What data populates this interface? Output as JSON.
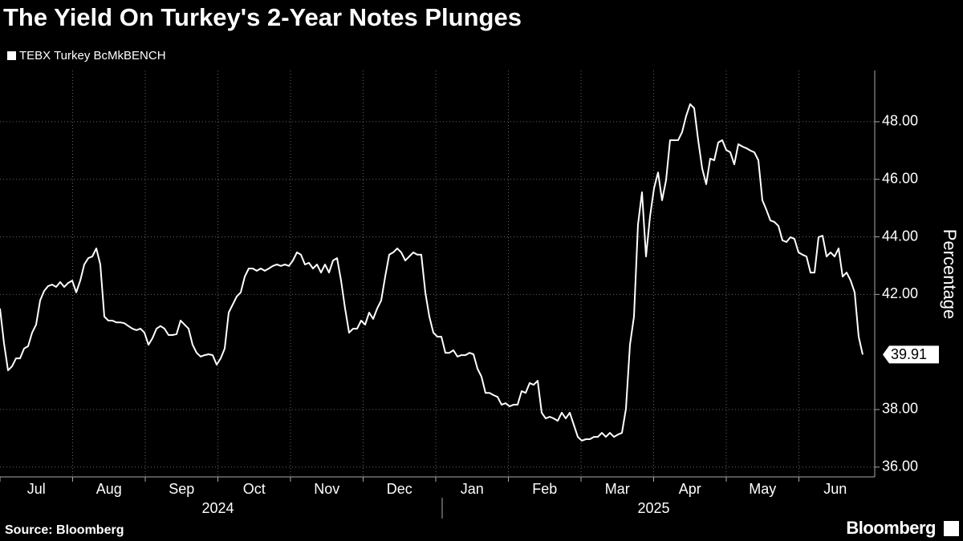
{
  "chart_data": {
    "type": "line",
    "title": "The Yield On Turkey's 2-Year Notes Plunges",
    "y_axis_label": "Percentage",
    "source": "Source: Bloomberg",
    "logo": "Bloomberg",
    "month_labels": [
      "Jul",
      "Aug",
      "Sep",
      "Oct",
      "Nov",
      "Dec",
      "Jan",
      "Feb",
      "Mar",
      "Apr",
      "May",
      "Jun"
    ],
    "year_labels": [
      "2024",
      "2025"
    ],
    "ylim": [
      35.66,
      49.78
    ],
    "yticks": [
      {
        "value": 36,
        "label": "36.00"
      },
      {
        "value": 38,
        "label": "38.00"
      },
      {
        "value": 42,
        "label": "42.00"
      },
      {
        "value": 44,
        "label": "44.00"
      },
      {
        "value": 46,
        "label": "46.00"
      },
      {
        "value": 48,
        "label": "48.00"
      }
    ],
    "grid": true,
    "series": [
      {
        "name": "TEBX Turkey BcMkBENCH",
        "color": "#ffffff",
        "values": [
          41.51,
          40.3,
          39.36,
          39.5,
          39.78,
          39.78,
          40.12,
          40.2,
          40.67,
          40.95,
          41.79,
          42.12,
          42.29,
          42.34,
          42.26,
          42.43,
          42.26,
          42.4,
          42.48,
          42.07,
          42.48,
          43.04,
          43.26,
          43.32,
          43.6,
          43.04,
          41.23,
          41.09,
          41.09,
          41.03,
          41.03,
          41.0,
          40.9,
          40.81,
          40.76,
          40.81,
          40.67,
          40.25,
          40.48,
          40.81,
          40.9,
          40.81,
          40.59,
          40.59,
          40.62,
          41.09,
          40.95,
          40.81,
          40.25,
          39.97,
          39.84,
          39.89,
          39.92,
          39.89,
          39.56,
          39.78,
          40.12,
          41.37,
          41.65,
          41.93,
          42.07,
          42.62,
          42.9,
          42.9,
          42.82,
          42.9,
          42.82,
          42.9,
          42.99,
          43.04,
          42.99,
          43.04,
          42.99,
          43.18,
          43.46,
          43.38,
          43.04,
          43.1,
          42.9,
          43.04,
          42.76,
          43.04,
          42.76,
          43.18,
          43.26,
          42.48,
          41.51,
          40.67,
          40.81,
          40.81,
          41.09,
          40.95,
          41.37,
          41.15,
          41.51,
          41.79,
          42.62,
          43.38,
          43.46,
          43.6,
          43.46,
          43.18,
          43.32,
          43.46,
          43.38,
          43.38,
          42.07,
          41.23,
          40.67,
          40.53,
          40.53,
          39.97,
          39.97,
          40.06,
          39.84,
          39.89,
          39.89,
          39.97,
          39.92,
          39.42,
          39.14,
          38.58,
          38.58,
          38.5,
          38.44,
          38.17,
          38.22,
          38.11,
          38.17,
          38.17,
          38.64,
          38.58,
          38.92,
          38.86,
          39.0,
          37.89,
          37.69,
          37.75,
          37.69,
          37.61,
          37.89,
          37.69,
          37.89,
          37.47,
          37.05,
          36.92,
          36.97,
          36.97,
          37.05,
          37.05,
          37.19,
          37.05,
          37.19,
          37.05,
          37.13,
          37.19,
          38.03,
          40.25,
          41.23,
          44.43,
          45.55,
          43.32,
          44.71,
          45.69,
          46.24,
          45.27,
          45.97,
          47.36,
          47.36,
          47.36,
          47.64,
          48.2,
          48.61,
          48.47,
          47.36,
          46.38,
          45.83,
          46.72,
          46.66,
          47.28,
          47.36,
          47.02,
          46.94,
          46.52,
          47.22,
          47.14,
          47.08,
          47.0,
          46.94,
          46.66,
          45.27,
          44.94,
          44.57,
          44.52,
          44.38,
          43.88,
          43.82,
          43.99,
          43.93,
          43.46,
          43.38,
          43.32,
          42.76,
          42.76,
          43.99,
          44.04,
          43.32,
          43.46,
          43.32,
          43.6,
          42.62,
          42.76,
          42.48,
          42.07,
          40.53,
          39.91
        ]
      }
    ]
  }
}
